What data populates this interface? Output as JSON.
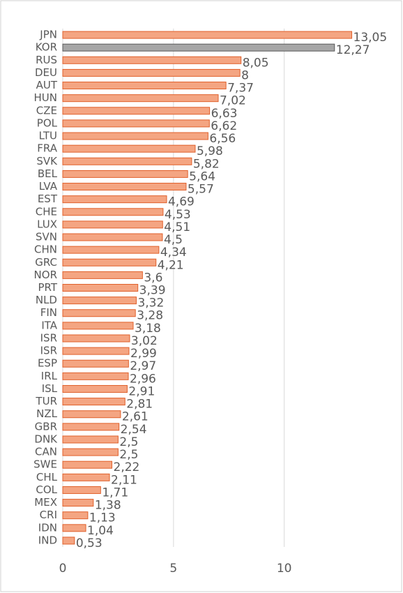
{
  "chart_data": {
    "type": "hbar",
    "categories": [
      "JPN",
      "KOR",
      "RUS",
      "DEU",
      "AUT",
      "HUN",
      "CZE",
      "POL",
      "LTU",
      "FRA",
      "SVK",
      "BEL",
      "LVA",
      "EST",
      "CHE",
      "LUX",
      "SVN",
      "CHN",
      "GRC",
      "NOR",
      "PRT",
      "NLD",
      "FIN",
      "ITA",
      "ISR",
      "ISR",
      "ESP",
      "IRL",
      "ISL",
      "TUR",
      "NZL",
      "GBR",
      "DNK",
      "CAN",
      "SWE",
      "CHL",
      "COL",
      "MEX",
      "CRI",
      "IDN",
      "IND"
    ],
    "values": [
      13.05,
      12.27,
      8.05,
      8,
      7.37,
      7.02,
      6.63,
      6.62,
      6.56,
      5.98,
      5.82,
      5.64,
      5.57,
      4.69,
      4.53,
      4.51,
      4.5,
      4.34,
      4.21,
      3.6,
      3.39,
      3.32,
      3.28,
      3.18,
      3.02,
      2.99,
      2.97,
      2.96,
      2.91,
      2.81,
      2.61,
      2.54,
      2.5,
      2.5,
      2.22,
      2.11,
      1.71,
      1.38,
      1.13,
      1.04,
      0.53
    ],
    "value_labels": [
      "13,05",
      "12,27",
      "8,05",
      "8",
      "7,37",
      "7,02",
      "6,63",
      "6,62",
      "6,56",
      "5,98",
      "5,82",
      "5,64",
      "5,57",
      "4,69",
      "4,53",
      "4,51",
      "4,5",
      "4,34",
      "4,21",
      "3,6",
      "3,39",
      "3,32",
      "3,28",
      "3,18",
      "3,02",
      "2,99",
      "2,97",
      "2,96",
      "2,91",
      "2,81",
      "2,61",
      "2,54",
      "2,5",
      "2,5",
      "2,22",
      "2,11",
      "1,71",
      "1,38",
      "1,13",
      "1,04",
      "0,53"
    ],
    "colors": [
      "#f4a582",
      "#a6a6a6",
      "#f4a582",
      "#f4a582",
      "#f4a582",
      "#f4a582",
      "#f4a582",
      "#f4a582",
      "#f4a582",
      "#f4a582",
      "#f4a582",
      "#f4a582",
      "#f4a582",
      "#f4a582",
      "#f4a582",
      "#f4a582",
      "#f4a582",
      "#f4a582",
      "#f4a582",
      "#f4a582",
      "#f4a582",
      "#f4a582",
      "#f4a582",
      "#f4a582",
      "#f4a582",
      "#f4a582",
      "#f4a582",
      "#f4a582",
      "#f4a582",
      "#f4a582",
      "#f4a582",
      "#f4a582",
      "#f4a582",
      "#f4a582",
      "#f4a582",
      "#f4a582",
      "#f4a582",
      "#f4a582",
      "#f4a582",
      "#f4a582",
      "#f4a582"
    ],
    "border_colors": [
      "#e0602b",
      "#595959",
      "#e0602b",
      "#e0602b",
      "#e0602b",
      "#e0602b",
      "#e0602b",
      "#e0602b",
      "#e0602b",
      "#e0602b",
      "#e0602b",
      "#e0602b",
      "#e0602b",
      "#e0602b",
      "#e0602b",
      "#e0602b",
      "#e0602b",
      "#e0602b",
      "#e0602b",
      "#e0602b",
      "#e0602b",
      "#e0602b",
      "#e0602b",
      "#e0602b",
      "#e0602b",
      "#e0602b",
      "#e0602b",
      "#e0602b",
      "#e0602b",
      "#e0602b",
      "#e0602b",
      "#e0602b",
      "#e0602b",
      "#e0602b",
      "#e0602b",
      "#e0602b",
      "#e0602b",
      "#e0602b",
      "#e0602b",
      "#e0602b",
      "#e0602b"
    ],
    "xlim": [
      0,
      13.6
    ],
    "xticks": [
      0,
      5,
      10
    ],
    "grid": true
  }
}
